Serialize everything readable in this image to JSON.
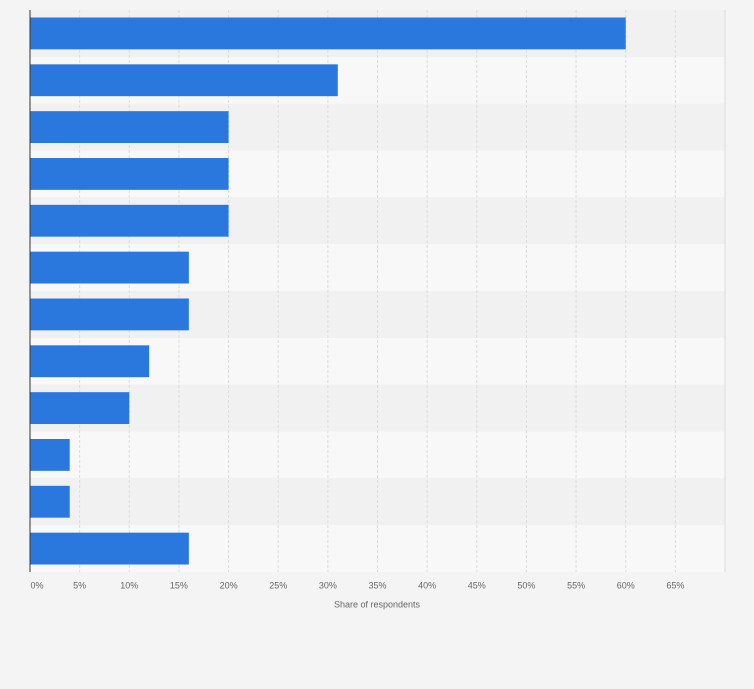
{
  "chart_data": {
    "type": "bar",
    "orientation": "horizontal",
    "categories": [
      null,
      null,
      null,
      null,
      null,
      null,
      null,
      null,
      null,
      null,
      null,
      null
    ],
    "values": [
      60,
      31,
      20,
      20,
      20,
      16,
      16,
      12,
      10,
      4,
      4,
      16
    ],
    "color": "#2a78de",
    "xlabel": "Share of respondents",
    "xlim": [
      0,
      70
    ],
    "xticks": [
      {
        "value": 0,
        "label": "0%"
      },
      {
        "value": 5,
        "label": "5%"
      },
      {
        "value": 10,
        "label": "10%"
      },
      {
        "value": 15,
        "label": "15%"
      },
      {
        "value": 20,
        "label": "20%"
      },
      {
        "value": 25,
        "label": "25%"
      },
      {
        "value": 30,
        "label": "30%"
      },
      {
        "value": 35,
        "label": "35%"
      },
      {
        "value": 40,
        "label": "40%"
      },
      {
        "value": 45,
        "label": "45%"
      },
      {
        "value": 50,
        "label": "50%"
      },
      {
        "value": 55,
        "label": "55%"
      },
      {
        "value": 60,
        "label": "60%"
      },
      {
        "value": 65,
        "label": "65%"
      }
    ],
    "grid": true
  }
}
